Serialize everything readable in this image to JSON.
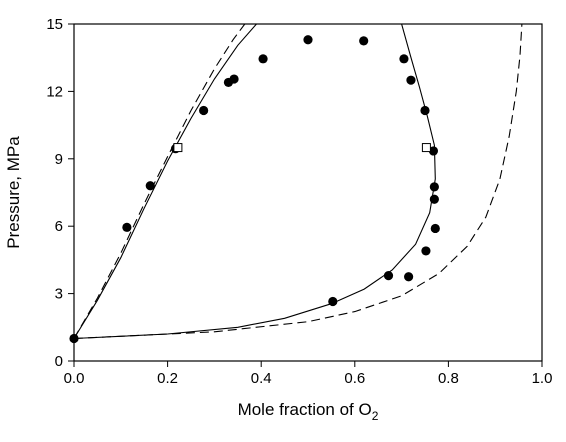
{
  "chart_data": {
    "type": "scatter",
    "xlabel": "Mole fraction of O",
    "xlabel_subscript": "2",
    "ylabel": "Pressure, MPa",
    "xlim": [
      0.0,
      1.0
    ],
    "ylim": [
      0,
      15
    ],
    "grid": false,
    "legend": "none",
    "x_ticks": [
      "0.0",
      "0.2",
      "0.4",
      "0.6",
      "0.8",
      "1.0"
    ],
    "x_tick_values": [
      0.0,
      0.2,
      0.4,
      0.6,
      0.8,
      1.0
    ],
    "y_ticks": [
      "0",
      "3",
      "6",
      "9",
      "12",
      "15"
    ],
    "y_tick_values": [
      0,
      3,
      6,
      9,
      12,
      15
    ],
    "series": [
      {
        "style": "filled-circles",
        "color": "#000000",
        "points": [
          [
            0.0,
            1.0
          ],
          [
            0.113,
            5.95
          ],
          [
            0.163,
            7.8
          ],
          [
            0.217,
            9.45
          ],
          [
            0.277,
            11.15
          ],
          [
            0.33,
            12.4
          ],
          [
            0.342,
            12.55
          ],
          [
            0.404,
            13.45
          ],
          [
            0.5,
            14.3
          ],
          [
            0.619,
            14.25
          ],
          [
            0.705,
            13.45
          ],
          [
            0.72,
            12.5
          ],
          [
            0.75,
            11.15
          ],
          [
            0.768,
            9.35
          ],
          [
            0.77,
            7.75
          ],
          [
            0.77,
            7.2
          ],
          [
            0.772,
            5.9
          ],
          [
            0.752,
            4.9
          ],
          [
            0.715,
            3.75
          ],
          [
            0.672,
            3.8
          ],
          [
            0.553,
            2.65
          ]
        ]
      },
      {
        "style": "open-squares",
        "color": "#000000",
        "points": [
          [
            0.222,
            9.5
          ],
          [
            0.753,
            9.5
          ]
        ]
      },
      {
        "style": "solid-line",
        "color": "#000000",
        "points": [
          [
            0.0,
            1.0
          ],
          [
            0.05,
            2.7
          ],
          [
            0.1,
            4.6
          ],
          [
            0.15,
            6.8
          ],
          [
            0.2,
            8.9
          ],
          [
            0.25,
            10.8
          ],
          [
            0.3,
            12.55
          ],
          [
            0.35,
            14.05
          ],
          [
            0.39,
            15.0
          ]
        ]
      },
      {
        "style": "solid-line",
        "color": "#000000",
        "points": [
          [
            0.0,
            1.0
          ],
          [
            0.2,
            1.2
          ],
          [
            0.35,
            1.5
          ],
          [
            0.45,
            1.9
          ],
          [
            0.55,
            2.55
          ],
          [
            0.62,
            3.2
          ],
          [
            0.68,
            4.05
          ],
          [
            0.73,
            5.2
          ],
          [
            0.76,
            6.6
          ],
          [
            0.772,
            8.1
          ],
          [
            0.77,
            9.6
          ],
          [
            0.755,
            10.9
          ],
          [
            0.738,
            12.2
          ],
          [
            0.72,
            13.5
          ],
          [
            0.7,
            15.0
          ]
        ]
      },
      {
        "style": "dashed-line",
        "color": "#000000",
        "points": [
          [
            0.0,
            1.0
          ],
          [
            0.05,
            2.8
          ],
          [
            0.1,
            4.8
          ],
          [
            0.15,
            7.0
          ],
          [
            0.2,
            9.1
          ],
          [
            0.25,
            11.15
          ],
          [
            0.3,
            13.0
          ],
          [
            0.34,
            14.3
          ],
          [
            0.365,
            15.0
          ]
        ]
      },
      {
        "style": "dashed-line",
        "color": "#000000",
        "points": [
          [
            0.0,
            1.0
          ],
          [
            0.3,
            1.3
          ],
          [
            0.5,
            1.75
          ],
          [
            0.6,
            2.2
          ],
          [
            0.7,
            2.9
          ],
          [
            0.78,
            3.9
          ],
          [
            0.84,
            5.1
          ],
          [
            0.88,
            6.4
          ],
          [
            0.91,
            8.1
          ],
          [
            0.93,
            10.0
          ],
          [
            0.945,
            12.0
          ],
          [
            0.953,
            13.6
          ],
          [
            0.957,
            15.0
          ]
        ]
      }
    ]
  }
}
